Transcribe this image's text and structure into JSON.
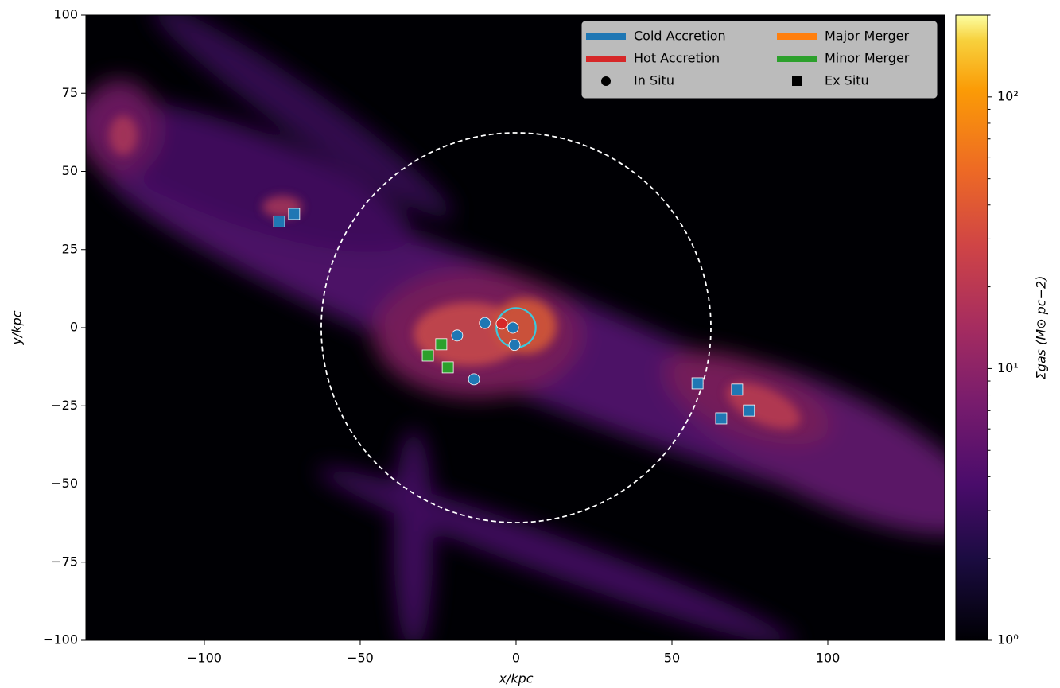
{
  "chart_data": {
    "type": "scatter",
    "xlabel": "x/kpc",
    "ylabel": "y/kpc",
    "xlim": [
      -138,
      137.5
    ],
    "ylim": [
      -100,
      100
    ],
    "xticks": [
      {
        "value": -100,
        "label": "−100"
      },
      {
        "value": -50,
        "label": "−50"
      },
      0,
      50,
      100
    ],
    "yticks": [
      {
        "value": -100,
        "label": "−100"
      },
      {
        "value": -75,
        "label": "−75"
      },
      {
        "value": -50,
        "label": "−50"
      },
      {
        "value": -25,
        "label": "−25"
      },
      0,
      25,
      50,
      75,
      100
    ],
    "channels": [
      {
        "name": "Cold Accretion",
        "color": "#1f77b4"
      },
      {
        "name": "Hot Accretion",
        "color": "#d62728"
      },
      {
        "name": "Major Merger",
        "color": "#ff7f0e"
      },
      {
        "name": "Minor Merger",
        "color": "#2ca02c"
      }
    ],
    "series": [
      {
        "name": "In Situ",
        "marker": "circle",
        "x": [
          -1,
          -4.6,
          -10,
          -18.9,
          -0.5,
          -13.5
        ],
        "y": [
          0,
          1.3,
          1.5,
          -2.5,
          -5.5,
          -16.5
        ],
        "colors": [
          "#1f77b4",
          "#d62728",
          "#1f77b4",
          "#1f77b4",
          "#1f77b4",
          "#1f77b4"
        ]
      },
      {
        "name": "Ex Situ",
        "marker": "square",
        "x": [
          -76,
          -71.2,
          -28.3,
          -24,
          -21.9,
          58.2,
          70.9,
          65.8,
          74.7
        ],
        "y": [
          34,
          36.4,
          -8.9,
          -5.3,
          -12.7,
          -17.8,
          -19.8,
          -29,
          -26.5
        ],
        "colors": [
          "#1f77b4",
          "#1f77b4",
          "#2ca02c",
          "#2ca02c",
          "#2ca02c",
          "#1f77b4",
          "#1f77b4",
          "#1f77b4",
          "#1f77b4"
        ]
      }
    ],
    "circles": [
      {
        "x": 0,
        "y": 0,
        "r": 62.5,
        "color": "#ffffff",
        "dashed": true
      },
      {
        "x": 0,
        "y": 0,
        "r": 6.3,
        "color": "#3cc8dc",
        "dashed": false
      }
    ],
    "colorbar": {
      "label": "Σgas (M⊙ pc−2)",
      "log": true,
      "lim": [
        1,
        200
      ],
      "ticks": [
        {
          "value": 1,
          "label": "10⁰"
        },
        {
          "value": 10,
          "label": "10¹"
        },
        {
          "value": 100,
          "label": "10²"
        }
      ],
      "minor_ticks": [
        2,
        3,
        4,
        5,
        6,
        7,
        8,
        9,
        20,
        30,
        40,
        50,
        60,
        70,
        80,
        90,
        200
      ]
    }
  }
}
